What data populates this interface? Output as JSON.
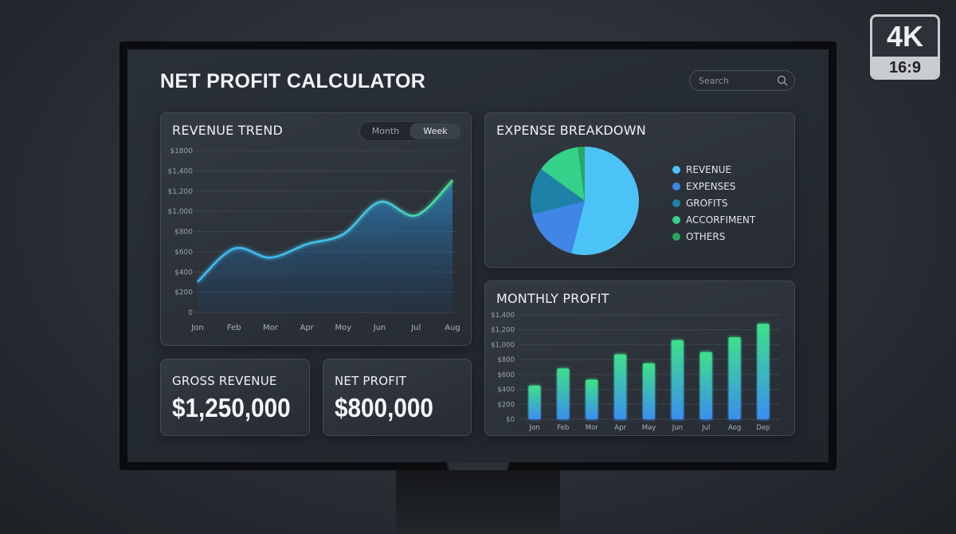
{
  "header": {
    "title": "NET PROFIT CALCULATOR",
    "search_placeholder": "Search"
  },
  "badge": {
    "resolution": "4K",
    "ratio": "16:9"
  },
  "revenue_trend": {
    "title": "REVENUE TREND",
    "toggle": [
      "Month",
      "Week"
    ],
    "active": "Week"
  },
  "expense_breakdown": {
    "title": "EXPENSE BREAKDOWN"
  },
  "monthly_profit": {
    "title": "MONTHLY PROFIT"
  },
  "gross_revenue": {
    "label": "GROSS REVENUE",
    "value": "$1,250,000"
  },
  "net_profit": {
    "label": "NET PROFIT",
    "value": "$800,000"
  },
  "chart_data": [
    {
      "type": "area",
      "title": "REVENUE TREND",
      "categories": [
        "Jon",
        "Feb",
        "Mor",
        "Apr",
        "Moy",
        "Jun",
        "Jul",
        "Aug"
      ],
      "values": [
        340,
        710,
        610,
        760,
        870,
        1230,
        1080,
        1470
      ],
      "ylim": [
        0,
        1800
      ],
      "yticks": [
        "0",
        "$200",
        "$400",
        "$600",
        "$800",
        "$1,000",
        "$1,200",
        "$1,400",
        "$1800"
      ],
      "grid": true,
      "colors": [
        "#3fb8f5",
        "#4be38a"
      ]
    },
    {
      "type": "pie",
      "title": "EXPENSE BREAKDOWN",
      "labels": [
        "REVENUE",
        "EXPENSES",
        "GROFITS",
        "ACCORFIMENT",
        "OTHERS"
      ],
      "values": [
        54,
        17,
        14,
        13,
        2
      ],
      "colors": [
        "#4cc3f7",
        "#3f86e6",
        "#1e82a8",
        "#35d08a",
        "#27a862"
      ],
      "legend": "right"
    },
    {
      "type": "bar",
      "title": "MONTHLY PROFIT",
      "categories": [
        "Jon",
        "Feb",
        "Mor",
        "Apr",
        "May",
        "Jun",
        "Jul",
        "Aog",
        "Dep"
      ],
      "values": [
        450,
        680,
        530,
        870,
        750,
        1060,
        900,
        1100,
        1280
      ],
      "ylim": [
        0,
        1400
      ],
      "yticks": [
        "$0",
        "$200",
        "$400",
        "$600",
        "$800",
        "$1,000",
        "$1,200",
        "$1,400"
      ],
      "grid": true,
      "colors": [
        "#3a8ef0",
        "#3de08a"
      ]
    }
  ]
}
